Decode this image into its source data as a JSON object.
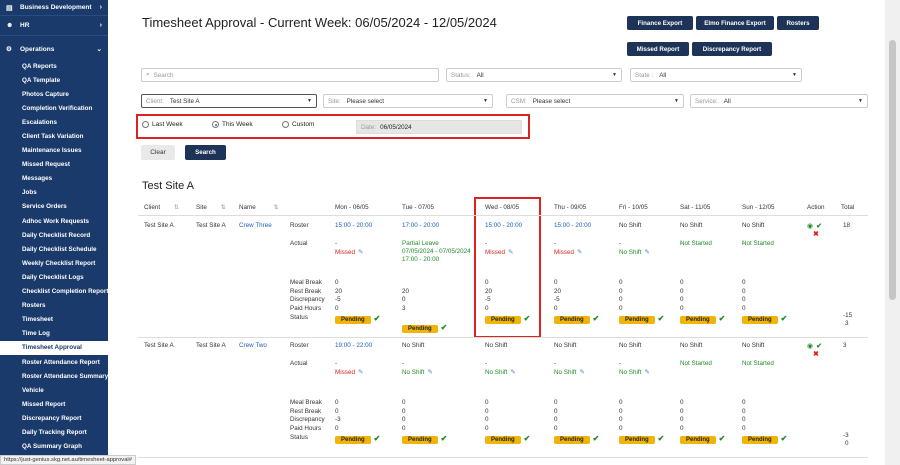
{
  "sidebar": {
    "top_sections": [
      {
        "label": "Business Development",
        "icon": "chart-icon"
      },
      {
        "label": "HR",
        "icon": "people-icon"
      }
    ],
    "operations": {
      "label": "Operations",
      "icon": "settings-icon"
    },
    "items": [
      "QA Reports",
      "QA Template",
      "Photos Capture",
      "Completion Verification",
      "Escalations",
      "Client Task Variation",
      "Maintenance Issues",
      "Missed Request",
      "Messages",
      "Jobs",
      "Service Orders",
      "Adhoc Work Requests",
      "Daily Checklist Record",
      "Daily Checklist Schedule",
      "Weekly Checklist Report",
      "Daily Checklist Logs",
      "Checklist Completion Report",
      "Rosters",
      "Timesheet",
      "Time Log",
      "Timesheet Approval",
      "Roster Attendance Report",
      "Roster Attendance Summary",
      "Vehicle",
      "Missed Report",
      "Discrepancy Report",
      "Daily Tracking Report",
      "QA Summary Graph"
    ],
    "active_item": "Timesheet Approval"
  },
  "header": {
    "title": "Timesheet Approval - Current Week: 06/05/2024 - 12/05/2024",
    "buttons": {
      "finance_export": "Finance Export",
      "elmo_finance_export": "Elmo Finance Export",
      "rosters": "Rosters",
      "missed_report": "Missed Report",
      "discrepancy_report": "Discrepancy Report"
    }
  },
  "filters": {
    "search_placeholder": "Search",
    "status_label": "Status:",
    "status_value": "All",
    "state_label": "State :",
    "state_value": "All",
    "client_label": "Client:",
    "client_value": "Test Site A",
    "site_label": "Site:",
    "site_value": "Please select",
    "csm_label": "CSM:",
    "csm_value": "Please select",
    "service_label": "Service:",
    "service_value": "All",
    "period_options": [
      "Last Week",
      "This Week",
      "Custom"
    ],
    "period_selected": "This Week",
    "date_label": "Date:",
    "date_value": "06/05/2024",
    "clear_label": "Clear",
    "search_label": "Search"
  },
  "site_heading": "Test Site A",
  "table": {
    "headers": {
      "client": "Client",
      "site": "Site",
      "name": "Name",
      "mon": "Mon - 06/05",
      "tue": "Tue - 07/05",
      "wed": "Wed - 08/05",
      "thu": "Thu - 09/05",
      "fri": "Fri - 10/05",
      "sat": "Sat - 11/05",
      "sun": "Sun - 12/05",
      "action": "Action",
      "total": "Total"
    },
    "row_labels": {
      "roster": "Roster",
      "actual": "Actual",
      "meal_break": "Meal Break",
      "rest_break": "Rest Break",
      "discrepancy": "Discrepancy",
      "paid_hours": "Paid Hours",
      "status": "Status"
    },
    "rows": [
      {
        "client": "Test Site A",
        "site": "Test Site A",
        "name": "Crew Three",
        "roster": [
          "15:00 - 20:00",
          "17:00 - 20:00",
          "15:00 - 20:00",
          "15:00 - 20:00",
          "No Shift",
          "No Shift",
          "No Shift"
        ],
        "actual_dash": [
          "-",
          "",
          "-",
          "-",
          "-",
          "-",
          "-"
        ],
        "actual": [
          "Missed",
          "Partial Leave",
          "Missed",
          "Missed",
          "No Shift",
          "Not Started",
          "Not Started"
        ],
        "actual_extra": [
          "",
          "07/05/2024 - 07/05/2024",
          "",
          "",
          "",
          "",
          ""
        ],
        "actual_extra2": [
          "",
          "17:00 - 20:00",
          "",
          "",
          "",
          "",
          ""
        ],
        "meal_break": [
          "0",
          "",
          "0",
          "0",
          "0",
          "0",
          "0"
        ],
        "rest_break": [
          "20",
          "20",
          "20",
          "20",
          "0",
          "0",
          "0"
        ],
        "discrepancy": [
          "-5",
          "0",
          "-5",
          "-5",
          "0",
          "0",
          "0"
        ],
        "paid_hours": [
          "0",
          "3",
          "0",
          "0",
          "0",
          "0",
          "0"
        ],
        "status": [
          "Pending",
          "Pending",
          "Pending",
          "Pending",
          "Pending",
          "Pending",
          "Pending"
        ],
        "total": "18",
        "total_discrepancy": "-15",
        "total_paid": "3"
      },
      {
        "client": "Test Site A",
        "site": "Test Site A",
        "name": "Crew Two",
        "roster": [
          "19:00 - 22:00",
          "No Shift",
          "No Shift",
          "No Shift",
          "No Shift",
          "No Shift",
          "No Shift"
        ],
        "actual_dash": [
          "-",
          "-",
          "-",
          "-",
          "-",
          "",
          ""
        ],
        "actual": [
          "Missed",
          "No Shift",
          "No Shift",
          "No Shift",
          "No Shift",
          "Not Started",
          "Not Started"
        ],
        "meal_break": [
          "0",
          "0",
          "0",
          "0",
          "0",
          "0",
          "0"
        ],
        "rest_break": [
          "0",
          "0",
          "0",
          "0",
          "0",
          "0",
          "0"
        ],
        "discrepancy": [
          "-3",
          "0",
          "0",
          "0",
          "0",
          "0",
          "0"
        ],
        "paid_hours": [
          "0",
          "0",
          "0",
          "0",
          "0",
          "0",
          "0"
        ],
        "status": [
          "Pending",
          "Pending",
          "Pending",
          "Pending",
          "Pending",
          "Pending",
          "Pending"
        ],
        "total": "3",
        "total_discrepancy": "-3",
        "total_paid": "0"
      }
    ]
  },
  "status_bar_url": "https://just-genius.skg.net.au/timesheet-approval#"
}
